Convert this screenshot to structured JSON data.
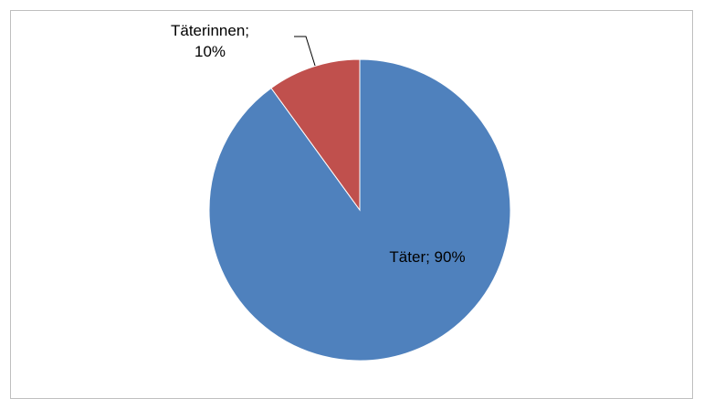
{
  "chart_data": {
    "type": "pie",
    "values": [
      90,
      10
    ],
    "value_labels": [
      "Täter; 90%",
      "Täterinnen; 10%"
    ],
    "colors": [
      "#4f81bd",
      "#c0504d"
    ]
  }
}
